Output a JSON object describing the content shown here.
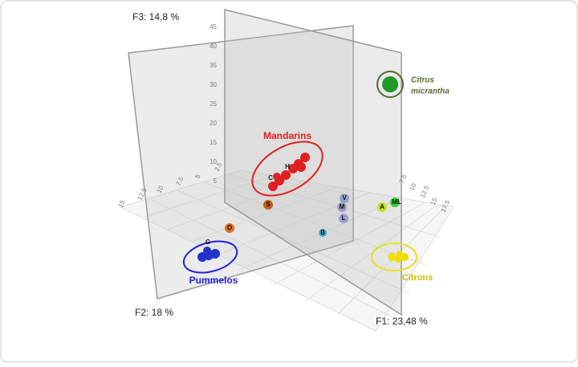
{
  "axes": {
    "f1": "F1: 23,48 %",
    "f2": "F2: 18 %",
    "f3": "F3: 14,8 %"
  },
  "ticks": {
    "f3": [
      "45",
      "40",
      "35",
      "30",
      "25",
      "20",
      "15",
      "10",
      "5"
    ],
    "f2": [
      "15",
      "12.5",
      "10",
      "7.5",
      "5",
      "2.5"
    ],
    "f1": [
      "7.5",
      "10",
      "12.5",
      "15",
      "17.5"
    ]
  },
  "groups": {
    "mandarins": "Mandarins",
    "pummelos": "Pummelos",
    "citrons": "Citrons",
    "micrantha": [
      "Citrus",
      "micrantha"
    ]
  },
  "point_labels": [
    "H",
    "C",
    "S",
    "O",
    "G",
    "V",
    "M",
    "L",
    "B",
    "A",
    "ML"
  ]
}
